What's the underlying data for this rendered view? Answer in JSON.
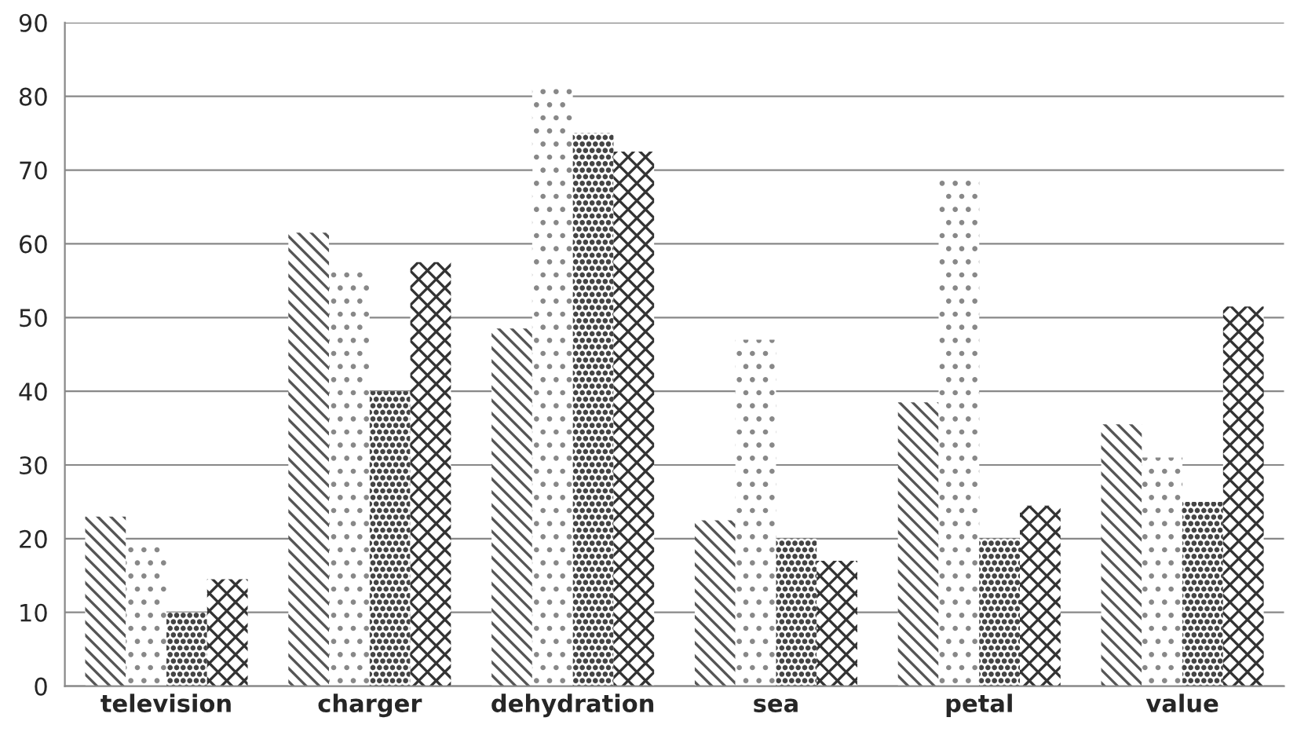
{
  "chart_data": {
    "type": "bar",
    "categories": [
      "television",
      "charger",
      "dehydration",
      "sea",
      "petal",
      "value"
    ],
    "series": [
      {
        "color": "#555555",
        "values": [
          23,
          61.5,
          48.5,
          22.5,
          38.5,
          35.5
        ]
      },
      {
        "color": "#888888",
        "values": [
          19,
          56.5,
          81,
          47,
          69,
          31
        ]
      },
      {
        "color": "#444444",
        "values": [
          10,
          40,
          75,
          20,
          20,
          25
        ]
      },
      {
        "color": "#333333",
        "values": [
          14.5,
          57.5,
          72.5,
          17,
          24.5,
          51.5
        ]
      }
    ],
    "ylim": [
      0,
      90
    ],
    "yticks": [
      0,
      10,
      20,
      30,
      40,
      50,
      60,
      70,
      80,
      90
    ],
    "grid": "y",
    "legend": false
  }
}
